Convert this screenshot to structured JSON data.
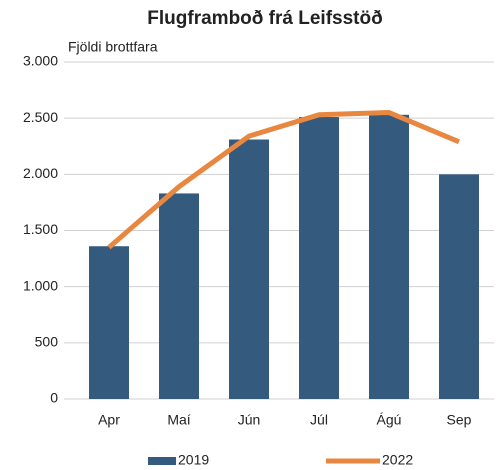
{
  "chart_data": {
    "type": "bar",
    "title": "Flugframboð frá Leifsstöð",
    "y_label": "Fjöldi brottfara",
    "categories": [
      "Apr",
      "Maí",
      "Jún",
      "Júl",
      "Ágú",
      "Sep"
    ],
    "series": [
      {
        "name": "2019",
        "type": "bar",
        "color": "#345a7e",
        "values": [
          1360,
          1830,
          2310,
          2510,
          2530,
          2000
        ]
      },
      {
        "name": "2022",
        "type": "line",
        "color": "#e8873f",
        "values": [
          1350,
          1890,
          2340,
          2530,
          2550,
          2290
        ]
      }
    ],
    "ylim": [
      0,
      3000
    ],
    "yticks": [
      0,
      500,
      {
        "value": 1000,
        "label": "1.000"
      },
      {
        "value": 1500,
        "label": "1.500"
      },
      {
        "value": 2000,
        "label": "2.000"
      },
      {
        "value": 2500,
        "label": "2.500"
      },
      {
        "value": 3000,
        "label": "3.000"
      }
    ],
    "grid": true,
    "legend": "bottom"
  }
}
